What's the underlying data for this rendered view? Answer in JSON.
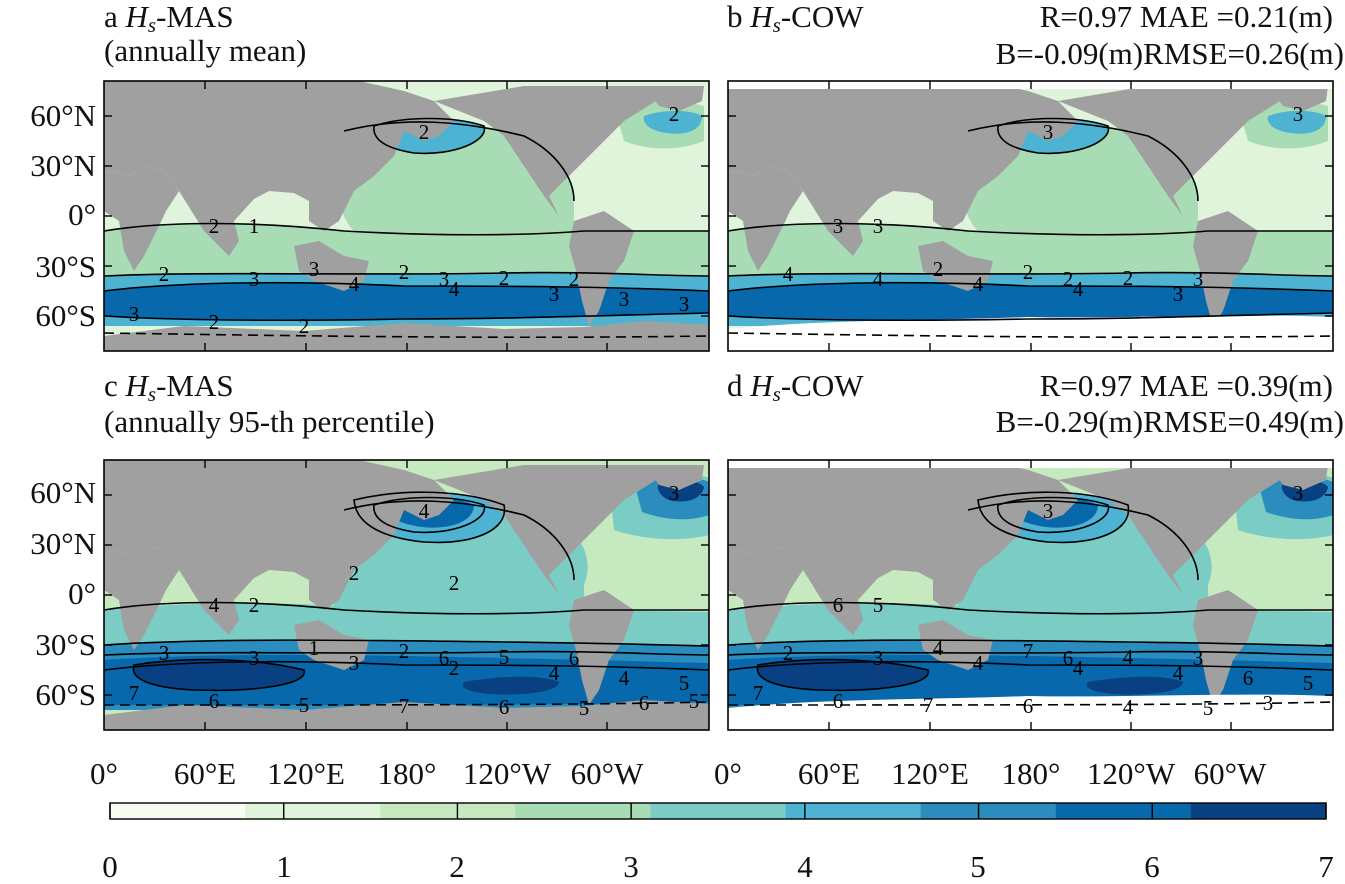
{
  "colors": {
    "levels": [
      "#f7fcf0",
      "#e0f3db",
      "#c7e9c0",
      "#a8dcb5",
      "#7bccc4",
      "#4eb3d3",
      "#2b8cbe",
      "#0868ac",
      "#084081"
    ],
    "land": "#a0a0a0",
    "ice": "#ffffff",
    "contour": "#000000"
  },
  "panels": [
    {
      "id": "a",
      "letter": "a",
      "var": "H",
      "sub": "s",
      "model": "-MAS",
      "line2": "(annually mean)",
      "stats1": "",
      "stats2": ""
    },
    {
      "id": "b",
      "letter": "b",
      "var": "H",
      "sub": "s",
      "model": "-COW",
      "line2": "",
      "stats1": "R=0.97 MAE =0.21(m)",
      "stats2": "B=-0.09(m)RMSE=0.26(m)"
    },
    {
      "id": "c",
      "letter": "c",
      "var": "H",
      "sub": "s",
      "model": "-MAS",
      "line2": "(annually 95-th percentile)",
      "stats1": "",
      "stats2": ""
    },
    {
      "id": "d",
      "letter": "d",
      "var": "H",
      "sub": "s",
      "model": "-COW",
      "line2": "",
      "stats1": "R=0.97 MAE =0.39(m)",
      "stats2": "B=-0.29(m)RMSE=0.49(m)"
    }
  ],
  "lat_ticks": [
    "60°N",
    "30°N",
    "0°",
    "30°S",
    "60°S"
  ],
  "lon_ticks": [
    "0°",
    "60°E",
    "120°E",
    "180°",
    "120°W",
    "60°W"
  ],
  "colorbar": {
    "ticks": [
      "0",
      "1",
      "2",
      "3",
      "4",
      "5",
      "6",
      "7"
    ],
    "min": 0,
    "max": 7
  },
  "contour_labels": {
    "a": [
      "2",
      "1",
      "3",
      "2",
      "3",
      "2",
      "2",
      "2",
      "2",
      "2",
      "3",
      "4",
      "4",
      "3",
      "3",
      "3",
      "3",
      "2",
      "2"
    ],
    "b": [
      "3",
      "3",
      "2",
      "2",
      "2",
      "2",
      "3",
      "3",
      "3",
      "4",
      "4",
      "4",
      "4",
      "3"
    ],
    "c": [
      "4",
      "2",
      "1",
      "2",
      "6",
      "5",
      "6",
      "4",
      "3",
      "3",
      "3",
      "3",
      "2",
      "4",
      "4",
      "5",
      "7",
      "6",
      "5",
      "7",
      "6",
      "5",
      "6",
      "5",
      "2",
      "2"
    ],
    "d": [
      "6",
      "5",
      "4",
      "7",
      "6",
      "4",
      "3",
      "3",
      "3",
      "2",
      "3",
      "4",
      "4",
      "4",
      "6",
      "5",
      "7",
      "6",
      "7",
      "6",
      "4",
      "5",
      "3"
    ]
  }
}
